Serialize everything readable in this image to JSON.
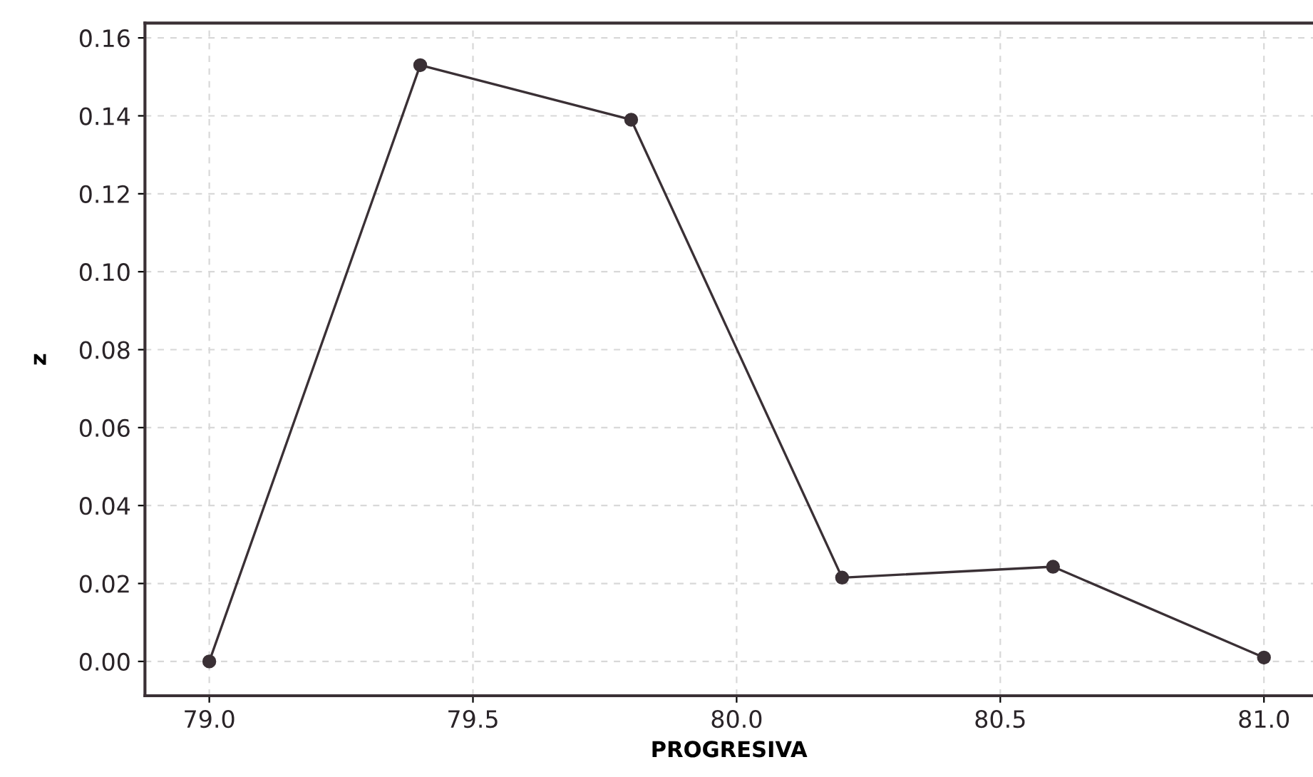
{
  "chart_data": {
    "type": "line",
    "xlabel": "PROGRESIVA",
    "ylabel": "z",
    "x": [
      79.0,
      79.4,
      79.8,
      80.2,
      80.6,
      81.0
    ],
    "series": [
      {
        "color": "#3a3035",
        "values": [
          0.0,
          0.153,
          0.139,
          0.0215,
          0.0243,
          0.001
        ]
      }
    ],
    "xlim": [
      78.878,
      81.093
    ],
    "xticks": [
      {
        "value": 79.0,
        "label": "79.0"
      },
      79.5,
      {
        "value": 80.0,
        "label": "80.0"
      },
      80.5,
      {
        "value": 81.0,
        "label": "81.0"
      }
    ],
    "ylim": [
      -0.0088,
      0.1638
    ],
    "yticks": [
      {
        "value": 0.0,
        "label": "0.00"
      },
      {
        "value": 0.02,
        "label": "0.02"
      },
      {
        "value": 0.04,
        "label": "0.04"
      },
      {
        "value": 0.06,
        "label": "0.06"
      },
      {
        "value": 0.08,
        "label": "0.08"
      },
      {
        "value": 0.1,
        "label": "0.10"
      },
      {
        "value": 0.12,
        "label": "0.12"
      },
      {
        "value": 0.14,
        "label": "0.14"
      },
      {
        "value": 0.16,
        "label": "0.16"
      }
    ],
    "grid": true,
    "marker": "circle",
    "line_style": "solid"
  }
}
